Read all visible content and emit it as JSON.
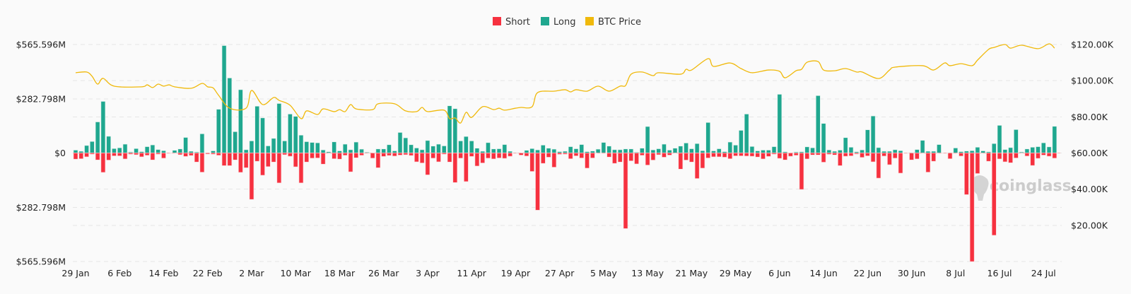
{
  "chart_data": {
    "type": "bar",
    "legend": {
      "placement": "top",
      "items": [
        {
          "name": "Short",
          "color": "#f6313f"
        },
        {
          "name": "Long",
          "color": "#1fa78f"
        },
        {
          "name": "BTC Price",
          "color": "#f0b90b"
        }
      ]
    },
    "watermark": "coinglass",
    "y_left": {
      "ylim": [
        -565.596,
        565.596
      ],
      "unit": "M USD",
      "tick_labels": [
        "$565.596M",
        "$282.798M",
        "$0",
        "$282.798M",
        "$565.596M"
      ]
    },
    "y_right": {
      "ylim": [
        0,
        120
      ],
      "unit": "K USD",
      "tick_labels": [
        "$120.00K",
        "$100.00K",
        "$80.00K",
        "$60.00K",
        "$40.00K",
        "$20.00K"
      ]
    },
    "x_tick_labels": [
      "29 Jan",
      "6 Feb",
      "14 Feb",
      "22 Feb",
      "2 Mar",
      "10 Mar",
      "18 Mar",
      "26 Mar",
      "3 Apr",
      "11 Apr",
      "19 Apr",
      "27 Apr",
      "5 May",
      "13 May",
      "21 May",
      "29 May",
      "6 Jun",
      "14 Jun",
      "22 Jun",
      "30 Jun",
      "8 Jul",
      "16 Jul",
      "24 Jul"
    ],
    "grid": true,
    "dates": [
      "29 Jan",
      "30 Jan",
      "31 Jan",
      "1 Feb",
      "2 Feb",
      "3 Feb",
      "4 Feb",
      "5 Feb",
      "6 Feb",
      "7 Feb",
      "8 Feb",
      "9 Feb",
      "10 Feb",
      "11 Feb",
      "12 Feb",
      "13 Feb",
      "14 Feb",
      "15 Feb",
      "16 Feb",
      "17 Feb",
      "18 Feb",
      "19 Feb",
      "20 Feb",
      "21 Feb",
      "22 Feb",
      "23 Feb",
      "24 Feb",
      "25 Feb",
      "26 Feb",
      "27 Feb",
      "28 Feb",
      "1 Mar",
      "2 Mar",
      "3 Mar",
      "4 Mar",
      "5 Mar",
      "6 Mar",
      "7 Mar",
      "8 Mar",
      "9 Mar",
      "10 Mar",
      "11 Mar",
      "12 Mar",
      "13 Mar",
      "14 Mar",
      "15 Mar",
      "16 Mar",
      "17 Mar",
      "18 Mar",
      "19 Mar",
      "20 Mar",
      "21 Mar",
      "22 Mar",
      "23 Mar",
      "24 Mar",
      "25 Mar",
      "26 Mar",
      "27 Mar",
      "28 Mar",
      "29 Mar",
      "30 Mar",
      "31 Mar",
      "1 Apr",
      "2 Apr",
      "3 Apr",
      "4 Apr",
      "5 Apr",
      "6 Apr",
      "7 Apr",
      "8 Apr",
      "9 Apr",
      "10 Apr",
      "11 Apr",
      "12 Apr",
      "13 Apr",
      "14 Apr",
      "15 Apr",
      "16 Apr",
      "17 Apr",
      "18 Apr",
      "19 Apr",
      "20 Apr",
      "21 Apr",
      "22 Apr",
      "23 Apr",
      "24 Apr",
      "25 Apr",
      "26 Apr",
      "27 Apr",
      "28 Apr",
      "29 Apr",
      "30 Apr",
      "1 May",
      "2 May",
      "3 May",
      "4 May",
      "5 May",
      "6 May",
      "7 May",
      "8 May",
      "9 May",
      "10 May",
      "11 May",
      "12 May",
      "13 May",
      "14 May",
      "15 May",
      "16 May",
      "17 May",
      "18 May",
      "19 May",
      "20 May",
      "21 May",
      "22 May",
      "23 May",
      "24 May",
      "25 May",
      "26 May",
      "27 May",
      "28 May",
      "29 May",
      "30 May",
      "31 May",
      "1 Jun",
      "2 Jun",
      "3 Jun",
      "4 Jun",
      "5 Jun",
      "6 Jun",
      "7 Jun",
      "8 Jun",
      "9 Jun",
      "10 Jun",
      "11 Jun",
      "12 Jun",
      "13 Jun",
      "14 Jun",
      "15 Jun",
      "16 Jun",
      "17 Jun",
      "18 Jun",
      "19 Jun",
      "20 Jun",
      "21 Jun",
      "22 Jun",
      "23 Jun",
      "24 Jun",
      "25 Jun",
      "26 Jun",
      "27 Jun",
      "28 Jun",
      "29 Jun",
      "30 Jun",
      "1 Jul",
      "2 Jul",
      "3 Jul",
      "4 Jul",
      "5 Jul",
      "6 Jul",
      "7 Jul",
      "8 Jul",
      "9 Jul",
      "10 Jul",
      "11 Jul",
      "12 Jul",
      "13 Jul",
      "14 Jul",
      "15 Jul",
      "16 Jul",
      "17 Jul",
      "18 Jul",
      "19 Jul",
      "20 Jul",
      "21 Jul",
      "22 Jul",
      "23 Jul",
      "24 Jul",
      "25 Jul",
      "26 Jul"
    ],
    "series": [
      {
        "name": "Long",
        "axis": "left",
        "values": [
          15,
          9,
          39,
          60,
          162,
          269,
          87,
          23,
          27,
          46,
          5,
          23,
          7,
          33,
          42,
          18,
          12,
          1,
          14,
          21,
          81,
          9,
          5,
          100,
          1,
          11,
          228,
          560,
          391,
          111,
          330,
          17,
          63,
          244,
          183,
          37,
          76,
          258,
          63,
          203,
          191,
          93,
          59,
          55,
          53,
          16,
          6,
          58,
          11,
          46,
          17,
          57,
          20,
          4,
          1,
          21,
          21,
          43,
          11,
          107,
          79,
          43,
          26,
          17,
          65,
          36,
          46,
          37,
          246,
          231,
          63,
          86,
          63,
          25,
          9,
          54,
          21,
          22,
          44,
          9,
          2,
          1,
          14,
          23,
          16,
          41,
          25,
          20,
          7,
          9,
          33,
          22,
          44,
          7,
          10,
          20,
          55,
          36,
          17,
          17,
          21,
          21,
          4,
          25,
          138,
          16,
          22,
          46,
          15,
          25,
          36,
          52,
          22,
          49,
          12,
          159,
          11,
          22,
          7,
          57,
          41,
          118,
          203,
          34,
          11,
          15,
          15,
          33,
          306,
          6,
          1,
          5,
          6,
          32,
          27,
          299,
          154,
          16,
          9,
          15,
          80,
          30,
          6,
          16,
          121,
          193,
          28,
          9,
          9,
          17,
          12,
          1,
          2,
          18,
          66,
          9,
          9,
          44,
          1,
          2,
          26,
          7,
          10,
          12,
          30,
          11,
          6,
          49,
          144,
          18,
          28,
          122,
          5,
          21,
          30,
          33,
          53,
          32,
          139
        ]
      },
      {
        "name": "Short",
        "axis": "left",
        "values": [
          32,
          30,
          20,
          6,
          36,
          101,
          37,
          15,
          15,
          31,
          6,
          9,
          20,
          12,
          36,
          6,
          27,
          2,
          2,
          9,
          18,
          13,
          47,
          100,
          5,
          6,
          12,
          66,
          66,
          36,
          101,
          77,
          242,
          43,
          116,
          71,
          47,
          156,
          9,
          17,
          72,
          156,
          47,
          27,
          26,
          58,
          2,
          30,
          32,
          12,
          98,
          25,
          12,
          2,
          27,
          77,
          18,
          13,
          16,
          11,
          9,
          13,
          46,
          52,
          114,
          27,
          46,
          6,
          47,
          154,
          27,
          149,
          18,
          68,
          52,
          27,
          31,
          26,
          28,
          17,
          2,
          11,
          16,
          96,
          298,
          54,
          22,
          74,
          7,
          6,
          30,
          15,
          26,
          79,
          26,
          1,
          2,
          21,
          54,
          47,
          394,
          41,
          57,
          12,
          63,
          37,
          9,
          22,
          11,
          1,
          84,
          37,
          47,
          133,
          79,
          26,
          20,
          20,
          22,
          30,
          15,
          15,
          16,
          17,
          21,
          31,
          18,
          6,
          28,
          36,
          17,
          12,
          190,
          31,
          10,
          10,
          48,
          7,
          10,
          66,
          17,
          15,
          5,
          23,
          15,
          46,
          131,
          16,
          61,
          27,
          105,
          1,
          36,
          31,
          2,
          100,
          43,
          2,
          0,
          30,
          2,
          16,
          217,
          566,
          107,
          2,
          43,
          429,
          31,
          46,
          51,
          26,
          2,
          16,
          65,
          28,
          11,
          17,
          27
        ]
      },
      {
        "name": "BTC Price",
        "axis": "right",
        "type": "line",
        "points": [
          [
            "29 Jan",
            104.4
          ],
          [
            "31 Jan",
            104.8
          ],
          [
            "1 Feb",
            102.4
          ],
          [
            "2 Feb",
            98.1
          ],
          [
            "3 Feb",
            101.3
          ],
          [
            "5 Feb",
            97
          ],
          [
            "10 Feb",
            96.6
          ],
          [
            "11 Feb",
            97.7
          ],
          [
            "12 Feb",
            96.2
          ],
          [
            "13 Feb",
            98.1
          ],
          [
            "14 Feb",
            97
          ],
          [
            "15 Feb",
            97.7
          ],
          [
            "16 Feb",
            96.6
          ],
          [
            "19 Feb",
            95.8
          ],
          [
            "21 Feb",
            98.5
          ],
          [
            "22 Feb",
            96.6
          ],
          [
            "23 Feb",
            96
          ],
          [
            "24 Feb",
            91.9
          ],
          [
            "26 Feb",
            84.8
          ],
          [
            "1 Mar",
            84.8
          ],
          [
            "2 Mar",
            94.6
          ],
          [
            "4 Mar",
            86.8
          ],
          [
            "6 Mar",
            90.7
          ],
          [
            "7 Mar",
            89.1
          ],
          [
            "9 Mar",
            86.4
          ],
          [
            "11 Mar",
            79
          ],
          [
            "12 Mar",
            83.3
          ],
          [
            "14 Mar",
            81.3
          ],
          [
            "15 Mar",
            84.4
          ],
          [
            "17 Mar",
            82.9
          ],
          [
            "18 Mar",
            84
          ],
          [
            "19 Mar",
            82.9
          ],
          [
            "20 Mar",
            86.8
          ],
          [
            "21 Mar",
            84.4
          ],
          [
            "24 Mar",
            84
          ],
          [
            "25 Mar",
            87.2
          ],
          [
            "28 Mar",
            87.2
          ],
          [
            "30 Mar",
            83.3
          ],
          [
            "1 Apr",
            82.9
          ],
          [
            "2 Apr",
            85.2
          ],
          [
            "3 Apr",
            82.9
          ],
          [
            "6 Apr",
            83.7
          ],
          [
            "7 Apr",
            79
          ],
          [
            "8 Apr",
            79.4
          ],
          [
            "9 Apr",
            76.6
          ],
          [
            "10 Apr",
            82.5
          ],
          [
            "11 Apr",
            79.7
          ],
          [
            "13 Apr",
            85.6
          ],
          [
            "15 Apr",
            84
          ],
          [
            "16 Apr",
            84.8
          ],
          [
            "17 Apr",
            83.7
          ],
          [
            "19 Apr",
            84.8
          ],
          [
            "20 Apr",
            85.2
          ],
          [
            "22 Apr",
            85.6
          ],
          [
            "23 Apr",
            93.4
          ],
          [
            "26 Apr",
            94.2
          ],
          [
            "28 Apr",
            95
          ],
          [
            "29 Apr",
            93.8
          ],
          [
            "30 Apr",
            95
          ],
          [
            "2 May",
            94.2
          ],
          [
            "4 May",
            97
          ],
          [
            "6 May",
            94.2
          ],
          [
            "8 May",
            97
          ],
          [
            "9 May",
            97.3
          ],
          [
            "10 May",
            103.6
          ],
          [
            "12 May",
            104.8
          ],
          [
            "14 May",
            102.8
          ],
          [
            "15 May",
            104.4
          ],
          [
            "19 May",
            103.6
          ],
          [
            "20 May",
            106.3
          ],
          [
            "21 May",
            105.9
          ],
          [
            "24 May",
            112.2
          ],
          [
            "25 May",
            107.9
          ],
          [
            "28 May",
            109.8
          ],
          [
            "30 May",
            106.7
          ],
          [
            "1 Jun",
            104.4
          ],
          [
            "4 Jun",
            105.9
          ],
          [
            "6 Jun",
            105.2
          ],
          [
            "7 Jun",
            101.6
          ],
          [
            "9 Jun",
            105.5
          ],
          [
            "10 Jun",
            106.3
          ],
          [
            "11 Jun",
            110.2
          ],
          [
            "13 Jun",
            110.6
          ],
          [
            "14 Jun",
            105.9
          ],
          [
            "16 Jun",
            105.5
          ],
          [
            "18 Jun",
            106.7
          ],
          [
            "20 Jun",
            104.8
          ],
          [
            "21 Jun",
            104.8
          ],
          [
            "24 Jun",
            101.2
          ],
          [
            "26 Jun",
            105.9
          ],
          [
            "27 Jun",
            107.5
          ],
          [
            "2 Jul",
            108.3
          ],
          [
            "4 Jul",
            105.9
          ],
          [
            "6 Jul",
            109.8
          ],
          [
            "7 Jul",
            108.3
          ],
          [
            "9 Jul",
            109.4
          ],
          [
            "11 Jul",
            108.3
          ],
          [
            "12 Jul",
            111.4
          ],
          [
            "14 Jul",
            117.3
          ],
          [
            "15 Jul",
            118.4
          ],
          [
            "17 Jul",
            120
          ],
          [
            "18 Jul",
            118
          ],
          [
            "20 Jul",
            119.6
          ],
          [
            "23 Jul",
            117.7
          ],
          [
            "25 Jul",
            120.4
          ],
          [
            "26 Jul",
            118
          ]
        ]
      }
    ]
  }
}
